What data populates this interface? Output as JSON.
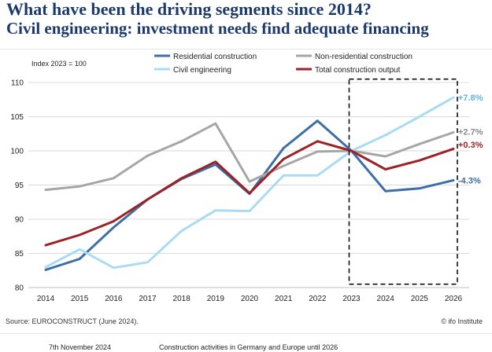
{
  "header": {
    "title": "What have been the driving segments since 2014?",
    "subtitle": "Civil engineering: investment needs find adequate financing"
  },
  "chart_data": {
    "type": "line",
    "title": "What have been the driving segments since 2014?",
    "subtitle": "Civil engineering: investment needs find adequate financing",
    "index_note": "Index 2023 = 100",
    "categories": [
      "2014",
      "2015",
      "2016",
      "2017",
      "2018",
      "2019",
      "2020",
      "2021",
      "2022",
      "2023",
      "2024",
      "2025",
      "2026"
    ],
    "y_ticks": [
      80,
      85,
      90,
      95,
      100,
      105,
      110
    ],
    "ylim": [
      80,
      110
    ],
    "series": [
      {
        "name": "Residential construction",
        "color": "#3b6fa6",
        "values": [
          82.6,
          84.2,
          88.8,
          92.9,
          95.9,
          98.0,
          93.7,
          100.4,
          104.4,
          100.0,
          94.1,
          94.5,
          95.7
        ],
        "end_label": "-4.3%"
      },
      {
        "name": "Non-residential construction",
        "color": "#a6a6a6",
        "values": [
          94.3,
          94.8,
          96.0,
          99.3,
          101.4,
          104.0,
          95.5,
          97.8,
          99.9,
          100.0,
          99.2,
          101.0,
          102.7
        ],
        "end_label": "+2.7%"
      },
      {
        "name": "Civil engineering",
        "color": "#a9dcf2",
        "values": [
          83.0,
          85.6,
          82.9,
          83.7,
          88.3,
          91.3,
          91.2,
          96.4,
          96.4,
          100.0,
          102.3,
          105.0,
          107.8
        ],
        "end_label": "+7.8%"
      },
      {
        "name": "Total construction output",
        "color": "#9b2226",
        "values": [
          86.2,
          87.7,
          89.7,
          92.9,
          96.0,
          98.4,
          93.8,
          98.8,
          101.4,
          100.0,
          97.3,
          98.6,
          100.3
        ],
        "end_label": "+0.3%"
      }
    ],
    "end_label_colors": {
      "+7.8%": "#5fb4de",
      "+2.7%": "#8a8a8a",
      "+0.3%": "#9b2226",
      "-4.3%": "#3b6fa6"
    },
    "forecast_box": {
      "from": "2023",
      "to": "2026",
      "ymin": 80.5,
      "ymax": 110.5
    }
  },
  "footer": {
    "source": "Source: EUROCONSTRUCT (June 2024).",
    "institute": "© ifo Institute",
    "date": "7th November 2024",
    "topic": "Construction activities in Germany and Europe until 2026"
  }
}
